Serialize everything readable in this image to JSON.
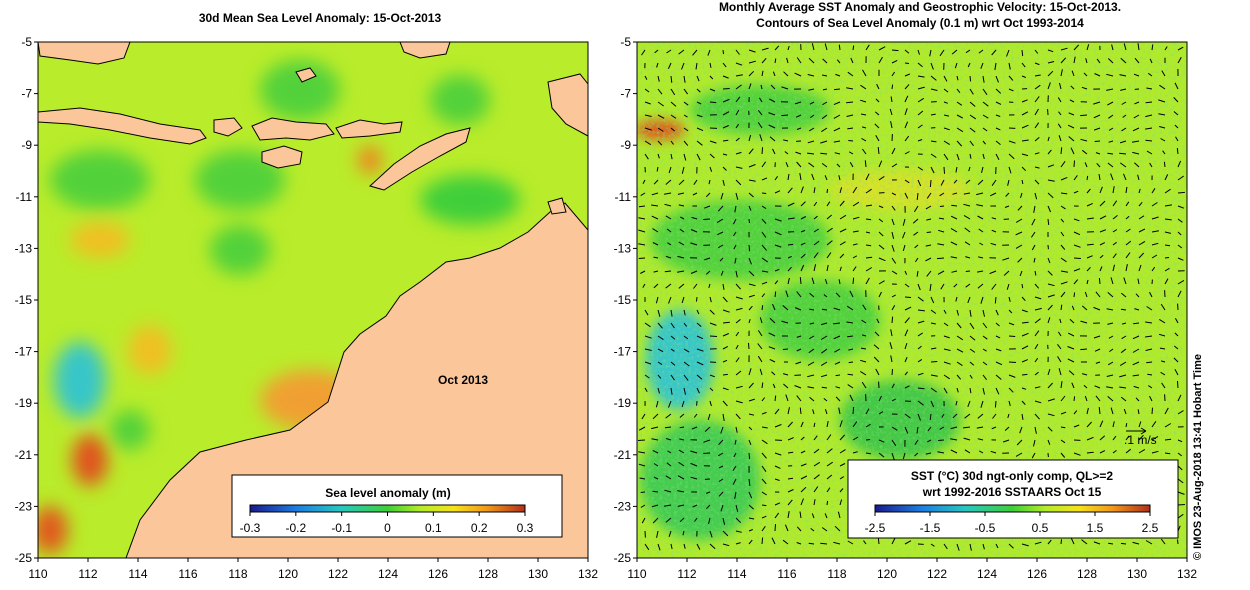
{
  "left_map": {
    "title": "30d Mean Sea Level Anomaly: 15-Oct-2013",
    "annotation": "Oct 2013",
    "colorbar": {
      "label": "Sea level anomaly (m)",
      "ticks": [
        "-0.3",
        "-0.2",
        "-0.1",
        "0",
        "0.1",
        "0.2",
        "0.3"
      ]
    }
  },
  "right_map": {
    "title_line1": "Monthly Average SST Anomaly  and Geostrophic Velocity: 15-Oct-2013.",
    "title_line2": "Contours of Sea Level Anomaly (0.1 m) wrt Oct 1993-2014",
    "scale_label": ".1 m/s",
    "note_line1": "SST (°C) 30d ngt-only comp, QL>=2",
    "note_line2": "wrt 1992-2016 SSTAARS Oct 15",
    "colorbar": {
      "ticks": [
        "-2.5",
        "-1.5",
        "-0.5",
        "0.5",
        "1.5",
        "2.5"
      ]
    }
  },
  "axes": {
    "lat_ticks": [
      "-5",
      "-7",
      "-9",
      "-11",
      "-13",
      "-15",
      "-17",
      "-19",
      "-21",
      "-23",
      "-25"
    ],
    "lon_ticks": [
      "110",
      "112",
      "114",
      "116",
      "118",
      "120",
      "122",
      "124",
      "126",
      "128",
      "130",
      "132"
    ]
  },
  "credit": "© IMOS 23-Aug-2018 13:41 Hobart Time",
  "colors": {
    "land": "#fbc79a",
    "ocean_base": "#b9ec2a",
    "ocean_green": "#52d13a",
    "ocean_orange": "#f2a020",
    "ocean_cyan": "#38c6c8"
  }
}
